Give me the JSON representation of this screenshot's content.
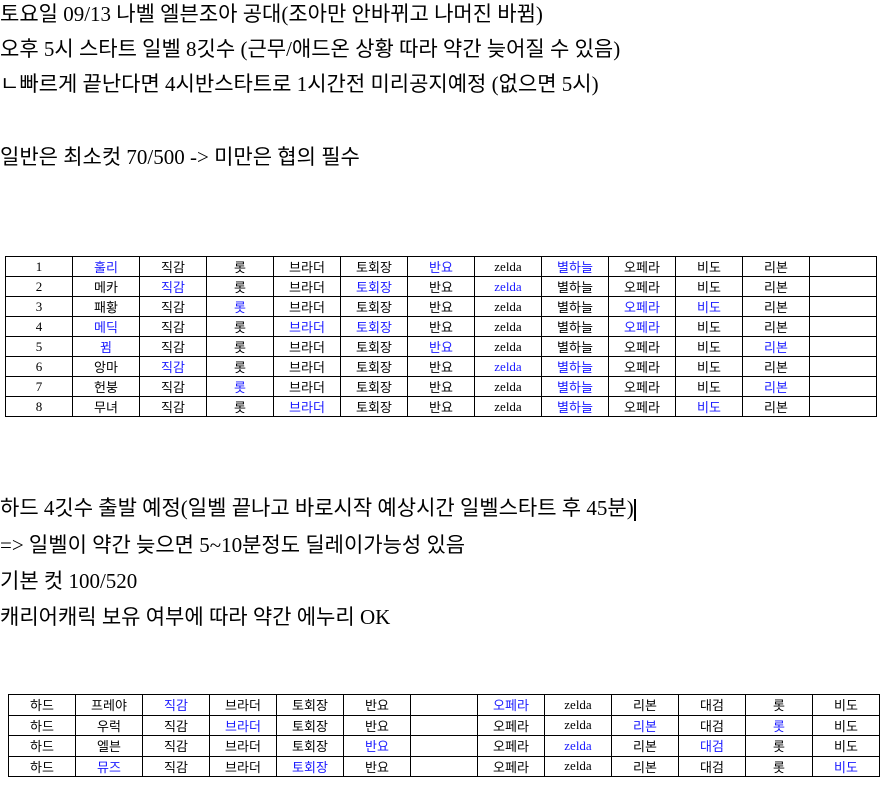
{
  "lines": {
    "l1": "토요일 09/13 나벨 엘븐조아 공대(조아만 안바뀌고 나머진 바뀜)",
    "l2": "오후 5시 스타트 일벨 8깃수 (근무/애드온 상황 따라 약간 늦어질 수 있음)",
    "l3": "ㄴ빠르게 끝난다면 4시반스타트로 1시간전 미리공지예정 (없으면 5시)",
    "l4": "일반은 최소컷 70/500 -> 미만은 협의 필수",
    "l5": "하드 4깃수  출발 예정(일벨 끝나고 바로시작 예상시간 일벨스타트 후 45분)",
    "l6": "=> 일벨이 약간 늦으면 5~10분정도 딜레이가능성 있음",
    "l7": "기본 컷 100/520",
    "l8": "캐리어캐릭 보유 여부에 따라 약간 에누리 OK"
  },
  "colors": {
    "highlight": "#1a1aff",
    "text": "#000000"
  },
  "table1": {
    "rows": [
      {
        "cells": [
          "1",
          "훌리",
          "직감",
          "롯",
          "브라더",
          "토회장",
          "반요",
          "zelda",
          "별하늘",
          "오페라",
          "비도",
          "리본",
          ""
        ],
        "blue": [
          1,
          6,
          8
        ]
      },
      {
        "cells": [
          "2",
          "메카",
          "직감",
          "롯",
          "브라더",
          "토회장",
          "반요",
          "zelda",
          "별하늘",
          "오페라",
          "비도",
          "리본",
          ""
        ],
        "blue": [
          2,
          5,
          7
        ]
      },
      {
        "cells": [
          "3",
          "패황",
          "직감",
          "롯",
          "브라더",
          "토회장",
          "반요",
          "zelda",
          "별하늘",
          "오페라",
          "비도",
          "리본",
          ""
        ],
        "blue": [
          3,
          9,
          10
        ]
      },
      {
        "cells": [
          "4",
          "메딕",
          "직감",
          "롯",
          "브라더",
          "토회장",
          "반요",
          "zelda",
          "별하늘",
          "오페라",
          "비도",
          "리본",
          ""
        ],
        "blue": [
          1,
          4,
          5,
          9
        ]
      },
      {
        "cells": [
          "5",
          "뀜",
          "직감",
          "롯",
          "브라더",
          "토회장",
          "반요",
          "zelda",
          "별하늘",
          "오페라",
          "비도",
          "리본",
          ""
        ],
        "blue": [
          1,
          6,
          11
        ]
      },
      {
        "cells": [
          "6",
          "앙마",
          "직감",
          "롯",
          "브라더",
          "토회장",
          "반요",
          "zelda",
          "별하늘",
          "오페라",
          "비도",
          "리본",
          ""
        ],
        "blue": [
          2,
          7,
          8
        ]
      },
      {
        "cells": [
          "7",
          "헌붕",
          "직감",
          "롯",
          "브라더",
          "토회장",
          "반요",
          "zelda",
          "별하늘",
          "오페라",
          "비도",
          "리본",
          ""
        ],
        "blue": [
          3,
          8,
          11
        ]
      },
      {
        "cells": [
          "8",
          "무녀",
          "직감",
          "롯",
          "브라더",
          "토회장",
          "반요",
          "zelda",
          "별하늘",
          "오페라",
          "비도",
          "리본",
          ""
        ],
        "blue": [
          4,
          8,
          10
        ]
      }
    ]
  },
  "table2": {
    "rows": [
      {
        "cells": [
          "하드",
          "프레야",
          "직감",
          "브라더",
          "토회장",
          "반요",
          "",
          "오페라",
          "zelda",
          "리본",
          "대검",
          "롯",
          "비도"
        ],
        "blue": [
          2,
          7
        ]
      },
      {
        "cells": [
          "하드",
          "우럭",
          "직감",
          "브라더",
          "토회장",
          "반요",
          "",
          "오페라",
          "zelda",
          "리본",
          "대검",
          "롯",
          "비도"
        ],
        "blue": [
          3,
          9,
          11
        ]
      },
      {
        "cells": [
          "하드",
          "엘븐",
          "직감",
          "브라더",
          "토회장",
          "반요",
          "",
          "오페라",
          "zelda",
          "리본",
          "대검",
          "롯",
          "비도"
        ],
        "blue": [
          5,
          8,
          10
        ]
      },
      {
        "cells": [
          "하드",
          "뮤즈",
          "직감",
          "브라더",
          "토회장",
          "반요",
          "",
          "오페라",
          "zelda",
          "리본",
          "대검",
          "롯",
          "비도"
        ],
        "blue": [
          1,
          4,
          12
        ]
      }
    ]
  }
}
